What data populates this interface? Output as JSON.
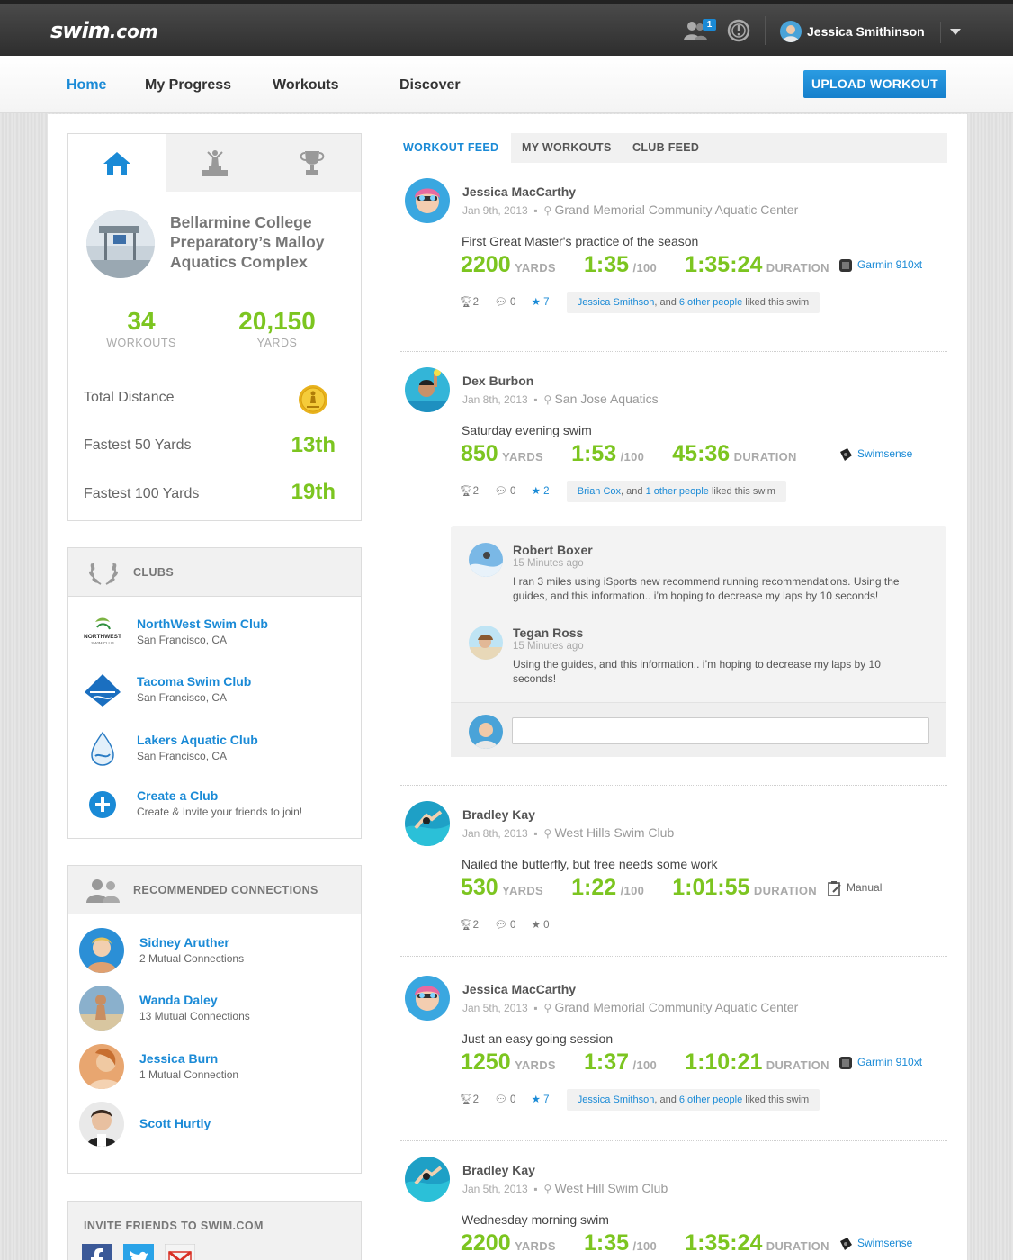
{
  "header": {
    "logo_main": "swim",
    "logo_dot": ".com",
    "friend_requests": "1",
    "user_name": "Jessica Smithinson"
  },
  "nav": {
    "items": [
      {
        "label": "Home",
        "active": true
      },
      {
        "label": "My Progress"
      },
      {
        "label": "Workouts"
      },
      {
        "label": "Discover"
      }
    ],
    "upload_label": "UPLOAD WORKOUT"
  },
  "profile": {
    "venue_name": "Bellarmine College Preparatory’s Malloy Aquatics Complex",
    "workouts_value": "34",
    "workouts_label": "WORKOUTS",
    "yards_value": "20,150",
    "yards_label": "YARDS",
    "rankings": [
      {
        "label": "Total Distance",
        "value": ""
      },
      {
        "label": "Fastest 50 Yards",
        "value": "13th"
      },
      {
        "label": "Fastest 100 Yards",
        "value": "19th"
      }
    ]
  },
  "clubs": {
    "heading": "CLUBS",
    "items": [
      {
        "name": "NorthWest Swim Club",
        "location": "San Francisco, CA"
      },
      {
        "name": "Tacoma Swim Club",
        "location": "San Francisco, CA"
      },
      {
        "name": "Lakers Aquatic Club",
        "location": "San Francisco, CA"
      },
      {
        "name": "Create a Club",
        "location": "Create & Invite your friends to join!"
      }
    ]
  },
  "recommended": {
    "heading": "RECOMMENDED CONNECTIONS",
    "items": [
      {
        "name": "Sidney Aruther",
        "mutual": "2 Mutual Connections"
      },
      {
        "name": "Wanda Daley",
        "mutual": "13 Mutual Connections"
      },
      {
        "name": "Jessica Burn",
        "mutual": "1 Mutual Connection"
      },
      {
        "name": "Scott Hurtly",
        "mutual": ""
      }
    ]
  },
  "invite": {
    "heading": "INVITE FRIENDS TO SWIM.COM"
  },
  "feed_tabs": [
    "WORKOUT FEED",
    "MY WORKOUTS",
    "CLUB FEED"
  ],
  "posts": [
    {
      "name": "Jessica MacCarthy",
      "date": "Jan 9th, 2013",
      "location": "Grand Memorial Community Aquatic Center",
      "title": "First Great Master's practice of the season",
      "yards": "2200",
      "yards_unit": "YARDS",
      "pace": "1:35",
      "pace_unit": "/100",
      "duration": "1:35:24",
      "duration_unit": "DURATION",
      "device": "Garmin 910xt",
      "cheers": "2",
      "comments": "0",
      "stars": "7",
      "likes_name": "Jessica Smithson",
      "likes_mid": ", and ",
      "likes_others": "6 other people",
      "likes_tail": " liked this swim"
    },
    {
      "name": "Dex Burbon",
      "date": "Jan 8th, 2013",
      "location": "San Jose Aquatics",
      "title": "Saturday evening swim",
      "yards": "850",
      "yards_unit": "YARDS",
      "pace": "1:53",
      "pace_unit": "/100",
      "duration": "45:36",
      "duration_unit": "DURATION",
      "device": "Swimsense",
      "cheers": "2",
      "comments": "0",
      "stars": "2",
      "likes_name": "Brian Cox",
      "likes_mid": ", and ",
      "likes_others": "1 other people",
      "likes_tail": " liked this swim"
    },
    {
      "name": "Bradley Kay",
      "date": "Jan 8th, 2013",
      "location": "West Hills Swim Club",
      "title": "Nailed the butterfly, but free needs some work",
      "yards": "530",
      "yards_unit": "YARDS",
      "pace": "1:22",
      "pace_unit": "/100",
      "duration": "1:01:55",
      "duration_unit": "DURATION",
      "device": "Manual",
      "cheers": "2",
      "comments": "0",
      "stars": "0"
    },
    {
      "name": "Jessica MacCarthy",
      "date": "Jan 5th, 2013",
      "location": "Grand Memorial Community Aquatic Center",
      "title": "Just an easy going session",
      "yards": "1250",
      "yards_unit": "YARDS",
      "pace": "1:37",
      "pace_unit": "/100",
      "duration": "1:10:21",
      "duration_unit": "DURATION",
      "device": "Garmin 910xt",
      "cheers": "2",
      "comments": "0",
      "stars": "7",
      "likes_name": "Jessica Smithson",
      "likes_mid": ", and ",
      "likes_others": "6 other people",
      "likes_tail": " liked this swim"
    },
    {
      "name": "Bradley Kay",
      "date": "Jan 5th, 2013",
      "location": "West Hill Swim Club",
      "title": "Wednesday morning swim",
      "yards": "2200",
      "yards_unit": "YARDS",
      "pace": "1:35",
      "pace_unit": "/100",
      "duration": "1:35:24",
      "duration_unit": "DURATION",
      "device": "Swimsense"
    }
  ],
  "comments": [
    {
      "name": "Robert Boxer",
      "time": "15 Minutes ago",
      "text": "I ran 3 miles using iSports new recommend running recommendations.  Using the guides, and this information.. i’m hoping to decrease my laps by 10 seconds!"
    },
    {
      "name": "Tegan Ross",
      "time": "15 Minutes ago",
      "text": "Using the guides, and this information.. i’m hoping to decrease my laps by 10 seconds!"
    }
  ],
  "comment_input": {
    "placeholder": ""
  },
  "colors": {
    "accent": "#1a8ad6",
    "stat_green": "#7cc520",
    "topbar": "#3a3a3a"
  }
}
